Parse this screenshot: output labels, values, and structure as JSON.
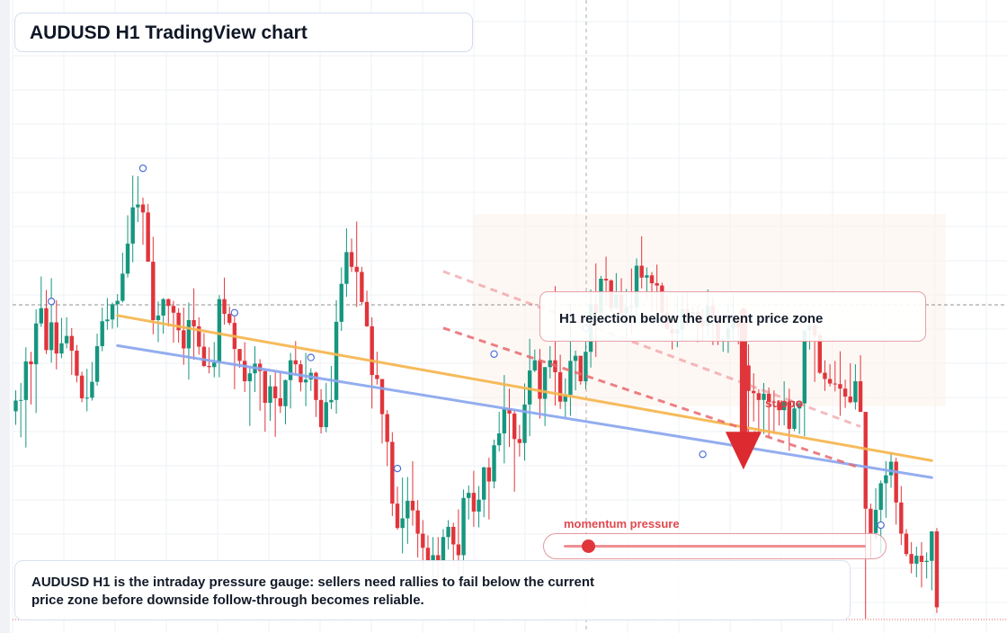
{
  "header": {
    "title": "AUDUSD H1 TradingView chart"
  },
  "callout": {
    "text": "H1 rejection below the current price zone"
  },
  "summary": {
    "text": "AUDUSD H1 is the intraday pressure gauge: sellers need rallies to fail below the current price zone before downside follow-through becomes reliable."
  },
  "gauge": {
    "label": "momentum pressure",
    "level": 0.08,
    "color": "#e0353b"
  },
  "support_label": {
    "text": "suppo"
  },
  "colors": {
    "up": "#16967f",
    "down": "#e0353b",
    "trend_orange": "#f6b64f",
    "trend_blue": "#8aa7ee",
    "channel": "#e86a70"
  },
  "chart_data": {
    "type": "candlestick",
    "ylim": [
      0,
      100
    ],
    "current_price": 51.3,
    "grid": true,
    "candles": [
      [
        36.6,
        38.5,
        34.2,
        40.3
      ],
      [
        38.5,
        38.6,
        32.0,
        41.6
      ],
      [
        38.6,
        45.4,
        30.2,
        47.9
      ],
      [
        45.4,
        44.9,
        37.8,
        47.1
      ],
      [
        44.9,
        52.1,
        36.3,
        54.6
      ],
      [
        52.1,
        54.8,
        51.5,
        60.4
      ],
      [
        54.8,
        47.4,
        46.7,
        58.0
      ],
      [
        47.4,
        52.3,
        45.2,
        60.1
      ],
      [
        52.3,
        46.8,
        44.0,
        56.2
      ],
      [
        46.8,
        48.6,
        46.0,
        53.1
      ],
      [
        48.6,
        49.9,
        47.7,
        53.2
      ],
      [
        49.9,
        47.3,
        43.0,
        51.3
      ],
      [
        47.3,
        42.9,
        41.7,
        48.3
      ],
      [
        42.9,
        38.9,
        38.2,
        43.6
      ],
      [
        38.9,
        39.0,
        36.6,
        44.1
      ],
      [
        39.0,
        41.8,
        38.5,
        45.3
      ],
      [
        41.8,
        48.1,
        41.1,
        50.3
      ],
      [
        48.1,
        52.5,
        47.2,
        54.9
      ],
      [
        52.5,
        52.8,
        51.0,
        56.6
      ],
      [
        52.8,
        55.5,
        51.2,
        55.8
      ],
      [
        55.5,
        56.1,
        51.4,
        57.3
      ],
      [
        56.1,
        60.9,
        55.8,
        64.6
      ],
      [
        60.9,
        66.2,
        60.2,
        71.2
      ],
      [
        66.2,
        72.6,
        62.9,
        78.2
      ],
      [
        72.6,
        73.1,
        70.0,
        78.1
      ],
      [
        73.1,
        71.7,
        66.0,
        74.3
      ],
      [
        71.7,
        63.0,
        63.9,
        73.2
      ],
      [
        63.0,
        52.7,
        50.2,
        67.4
      ],
      [
        52.7,
        53.5,
        48.8,
        56.0
      ],
      [
        53.5,
        56.4,
        50.3,
        56.6
      ],
      [
        56.4,
        55.2,
        51.6,
        56.5
      ],
      [
        55.2,
        54.0,
        48.7,
        56.1
      ],
      [
        54.0,
        50.9,
        48.7,
        54.8
      ],
      [
        50.9,
        47.7,
        44.8,
        54.9
      ],
      [
        47.7,
        52.7,
        42.2,
        55.8
      ],
      [
        52.7,
        51.6,
        45.7,
        58.3
      ],
      [
        51.6,
        48.0,
        46.6,
        53.2
      ],
      [
        48.0,
        44.6,
        44.4,
        50.4
      ],
      [
        44.6,
        44.4,
        43.3,
        47.9
      ],
      [
        44.4,
        45.2,
        42.6,
        48.8
      ],
      [
        45.2,
        56.4,
        42.6,
        57.1
      ],
      [
        56.4,
        53.8,
        51.9,
        60.2
      ],
      [
        53.8,
        52.2,
        51.8,
        55.1
      ],
      [
        52.2,
        47.6,
        40.5,
        53.3
      ],
      [
        47.6,
        45.5,
        44.3,
        46.7
      ],
      [
        45.5,
        41.9,
        40.0,
        48.8
      ],
      [
        41.9,
        43.3,
        34.0,
        44.4
      ],
      [
        43.3,
        45.0,
        40.0,
        48.1
      ],
      [
        45.0,
        43.7,
        36.7,
        45.8
      ],
      [
        43.7,
        38.1,
        33.0,
        43.7
      ],
      [
        38.1,
        41.0,
        34.9,
        43.0
      ],
      [
        41.0,
        38.9,
        32.1,
        43.5
      ],
      [
        38.9,
        37.5,
        36.3,
        43.5
      ],
      [
        37.5,
        42.1,
        34.3,
        42.2
      ],
      [
        42.1,
        45.6,
        37.1,
        46.9
      ],
      [
        45.6,
        44.9,
        43.1,
        49.0
      ],
      [
        44.9,
        41.7,
        40.1,
        45.6
      ],
      [
        41.7,
        42.2,
        37.5,
        46.9
      ],
      [
        42.2,
        43.4,
        40.2,
        44.2
      ],
      [
        43.4,
        38.6,
        35.6,
        43.6
      ],
      [
        38.6,
        33.8,
        32.7,
        40.5
      ],
      [
        33.8,
        38.2,
        32.9,
        41.6
      ],
      [
        38.2,
        38.6,
        37.0,
        44.6
      ],
      [
        38.6,
        52.4,
        36.2,
        56.2
      ],
      [
        52.4,
        59.1,
        50.8,
        62.0
      ],
      [
        59.1,
        64.7,
        56.8,
        68.9
      ],
      [
        64.7,
        62.1,
        61.2,
        67.1
      ],
      [
        62.1,
        61.2,
        55.0,
        70.1
      ],
      [
        61.2,
        55.9,
        55.5,
        62.1
      ],
      [
        55.9,
        51.6,
        51.5,
        57.9
      ],
      [
        51.6,
        43.0,
        37.1,
        53.2
      ],
      [
        43.0,
        42.3,
        41.3,
        47.1
      ],
      [
        42.3,
        36.1,
        30.9,
        42.3
      ],
      [
        36.1,
        31.2,
        26.9,
        36.8
      ],
      [
        31.2,
        20.3,
        18.1,
        32.9
      ],
      [
        20.3,
        16.0,
        15.7,
        23.3
      ],
      [
        16.0,
        17.7,
        11.5,
        24.9
      ],
      [
        17.7,
        20.8,
        13.2,
        25.0
      ],
      [
        20.8,
        19.1,
        16.4,
        27.8
      ],
      [
        19.1,
        15.0,
        10.8,
        20.9
      ],
      [
        15.0,
        12.5,
        6.5,
        17.4
      ],
      [
        12.5,
        10.1,
        10.0,
        14.7
      ],
      [
        10.1,
        11.2,
        4.6,
        14.4
      ],
      [
        11.2,
        10.2,
        6.0,
        14.4
      ],
      [
        10.2,
        14.4,
        7.5,
        15.8
      ],
      [
        14.4,
        16.2,
        12.2,
        17.4
      ],
      [
        16.2,
        13.1,
        9.2,
        16.9
      ],
      [
        13.1,
        11.2,
        7.4,
        19.3
      ],
      [
        11.2,
        21.3,
        7.4,
        22.8
      ],
      [
        21.3,
        22.2,
        17.5,
        23.5
      ],
      [
        22.2,
        18.9,
        16.2,
        26.1
      ],
      [
        18.9,
        21.0,
        16.1,
        23.4
      ],
      [
        21.0,
        26.7,
        17.9,
        26.8
      ],
      [
        26.7,
        24.2,
        17.5,
        28.4
      ],
      [
        24.2,
        30.6,
        23.0,
        31.6
      ],
      [
        30.6,
        32.7,
        29.5,
        36.5
      ],
      [
        32.7,
        37.1,
        27.4,
        43.0
      ],
      [
        37.1,
        36.2,
        30.3,
        40.6
      ],
      [
        36.2,
        31.7,
        22.4,
        36.7
      ],
      [
        31.7,
        31.0,
        28.6,
        34.2
      ],
      [
        31.0,
        37.8,
        27.9,
        41.5
      ],
      [
        37.8,
        43.8,
        32.2,
        49.4
      ],
      [
        43.8,
        45.6,
        43.5,
        47.5
      ],
      [
        45.6,
        38.8,
        35.3,
        47.6
      ],
      [
        38.8,
        44.4,
        34.0,
        44.4
      ],
      [
        44.4,
        45.6,
        42.4,
        48.1
      ],
      [
        45.6,
        43.5,
        37.6,
        58.7
      ],
      [
        43.5,
        38.3,
        37.0,
        46.6
      ],
      [
        38.3,
        39.5,
        35.4,
        42.4
      ],
      [
        39.5,
        45.5,
        35.8,
        55.6
      ],
      [
        45.5,
        46.4,
        40.3,
        47.3
      ],
      [
        46.4,
        41.9,
        41.3,
        46.4
      ],
      [
        41.9,
        47.1,
        40.5,
        49.0
      ],
      [
        47.1,
        55.5,
        44.3,
        58.1
      ],
      [
        55.5,
        54.0,
        46.2,
        62.7
      ],
      [
        54.0,
        60.0,
        51.3,
        60.5
      ],
      [
        60.0,
        59.7,
        55.5,
        63.9
      ],
      [
        59.7,
        54.8,
        54.1,
        59.9
      ],
      [
        54.8,
        57.2,
        54.5,
        61.0
      ],
      [
        57.2,
        53.9,
        53.0,
        60.1
      ],
      [
        53.9,
        55.1,
        49.6,
        58.2
      ],
      [
        55.1,
        55.0,
        50.3,
        61.8
      ],
      [
        55.0,
        62.3,
        52.2,
        63.6
      ],
      [
        62.3,
        60.2,
        58.3,
        67.5
      ],
      [
        60.2,
        60.6,
        56.3,
        62.0
      ],
      [
        60.6,
        59.2,
        54.0,
        61.2
      ],
      [
        59.2,
        58.8,
        53.4,
        62.5
      ],
      [
        58.8,
        54.0,
        51.3,
        59.3
      ],
      [
        54.0,
        51.1,
        51.1,
        57.1
      ],
      [
        51.1,
        50.3,
        47.5,
        53.5
      ],
      [
        50.3,
        51.0,
        47.9,
        57.1
      ],
      [
        51.0,
        54.6,
        48.9,
        57.4
      ],
      [
        54.6,
        53.4,
        51.6,
        57.6
      ],
      [
        53.4,
        54.1,
        51.6,
        55.1
      ],
      [
        54.1,
        52.6,
        48.8,
        55.4
      ],
      [
        52.6,
        51.6,
        48.9,
        54.7
      ],
      [
        51.6,
        55.2,
        49.8,
        58.1
      ],
      [
        55.2,
        53.4,
        48.3,
        56.7
      ],
      [
        53.4,
        49.1,
        48.3,
        54.4
      ],
      [
        49.1,
        49.3,
        47.1,
        49.9
      ],
      [
        49.3,
        51.2,
        46.9,
        55.7
      ],
      [
        51.2,
        53.1,
        49.1,
        57.3
      ],
      [
        53.1,
        51.4,
        48.4,
        53.5
      ],
      [
        51.4,
        44.7,
        41.8,
        54.9
      ],
      [
        44.7,
        40.2,
        32.1,
        48.4
      ],
      [
        40.2,
        39.8,
        34.8,
        43.3
      ],
      [
        39.8,
        38.6,
        32.6,
        40.5
      ],
      [
        38.6,
        39.7,
        32.6,
        41.6
      ],
      [
        39.7,
        38.3,
        31.9,
        40.8
      ],
      [
        38.3,
        38.2,
        32.6,
        40.3
      ],
      [
        38.2,
        36.8,
        34.1,
        38.6
      ],
      [
        36.8,
        38.3,
        34.1,
        41.9
      ],
      [
        38.3,
        33.5,
        29.6,
        40.6
      ],
      [
        33.5,
        37.1,
        33.1,
        38.4
      ],
      [
        37.1,
        38.0,
        32.6,
        38.4
      ],
      [
        38.0,
        50.9,
        32.2,
        50.9
      ],
      [
        50.9,
        51.7,
        47.5,
        54.3
      ],
      [
        51.7,
        50.0,
        41.8,
        52.3
      ],
      [
        50.0,
        43.4,
        43.2,
        50.7
      ],
      [
        43.4,
        42.3,
        40.2,
        45.6
      ],
      [
        42.3,
        41.5,
        41.0,
        44.9
      ],
      [
        41.5,
        41.4,
        40.1,
        45.5
      ],
      [
        41.4,
        40.6,
        35.8,
        47.2
      ],
      [
        40.6,
        39.2,
        37.2,
        42.2
      ],
      [
        39.2,
        38.2,
        38.0,
        45.1
      ],
      [
        38.2,
        41.9,
        36.9,
        44.9
      ],
      [
        41.9,
        36.5,
        37.1,
        46.5
      ],
      [
        36.5,
        19.4,
        0.0,
        35.7
      ],
      [
        19.4,
        15.1,
        10.7,
        20.3
      ],
      [
        15.1,
        19.2,
        14.1,
        23.0
      ],
      [
        19.2,
        23.9,
        11.5,
        24.4
      ],
      [
        23.9,
        25.3,
        17.8,
        27.8
      ],
      [
        25.3,
        27.7,
        23.1,
        29.4
      ],
      [
        27.7,
        20.5,
        16.6,
        28.4
      ],
      [
        20.5,
        15.0,
        13.0,
        23.4
      ],
      [
        15.0,
        11.4,
        11.0,
        15.8
      ],
      [
        11.4,
        9.7,
        8.0,
        13.5
      ],
      [
        9.7,
        11.1,
        7.3,
        12.7
      ],
      [
        11.1,
        10.0,
        5.5,
        13.5
      ],
      [
        10.0,
        10.2,
        7.1,
        11.7
      ],
      [
        10.2,
        15.4,
        5.0,
        15.4
      ],
      [
        15.4,
        2.0,
        1.0,
        16.0
      ]
    ],
    "markers": [
      {
        "i": 7,
        "v": 56.0
      },
      {
        "i": 25,
        "v": 79.5
      },
      {
        "i": 43,
        "v": 54.0
      },
      {
        "i": 58,
        "v": 46.1
      },
      {
        "i": 75,
        "v": 26.5
      },
      {
        "i": 94,
        "v": 46.7
      },
      {
        "i": 112,
        "v": 51.3
      },
      {
        "i": 135,
        "v": 29.0
      },
      {
        "i": 170,
        "v": 16.5
      }
    ],
    "trendlines": [
      {
        "color": "trend_orange",
        "from": [
          20,
          53.5
        ],
        "to": [
          180,
          27.9
        ]
      },
      {
        "color": "trend_blue",
        "from": [
          20,
          48.2
        ],
        "to": [
          180,
          24.9
        ]
      }
    ],
    "channel_lines": [
      {
        "from": [
          84,
          51.3
        ],
        "to": [
          166,
          26.6
        ],
        "opacity": 0.85
      },
      {
        "from": [
          84,
          61.3
        ],
        "to": [
          166,
          33.9
        ],
        "opacity": 0.45
      }
    ],
    "arrow": {
      "x_index": 143,
      "from": 54.2,
      "to": 26.3
    }
  }
}
